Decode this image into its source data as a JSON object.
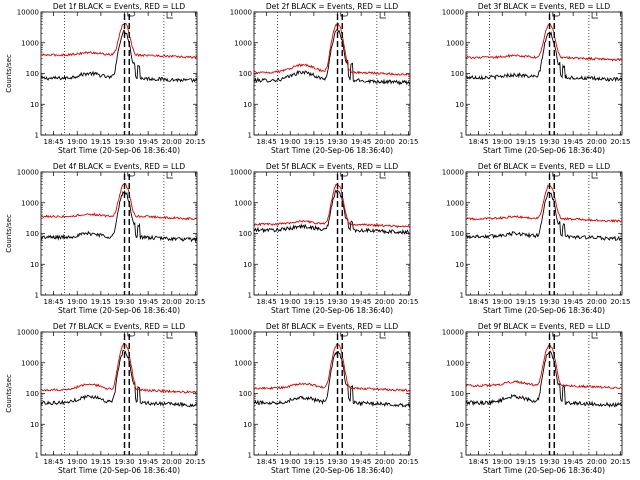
{
  "figure": {
    "xlabel": "Start Time (20-Sep-06 18:36:40)",
    "ylabel": "Counts/sec",
    "x_tick_labels": [
      "18:45",
      "19:00",
      "19:15",
      "19:30",
      "19:45",
      "20:00",
      "20:15"
    ],
    "y_tick_labels": [
      "1",
      "10",
      "100",
      "1000",
      "10000"
    ],
    "colors": {
      "events": "#000000",
      "lld": "#dd0000",
      "axis": "#000000",
      "background": "#ffffff"
    }
  },
  "chart_data": [
    {
      "type": "line",
      "title": "Det 1f BLACK = Events, RED = LLD",
      "xlabel": "Start Time (20-Sep-06 18:36:40)",
      "ylabel": "Counts/sec",
      "x_tick_labels": [
        "18:45",
        "19:00",
        "19:15",
        "19:30",
        "19:45",
        "20:00",
        "20:15"
      ],
      "ylog": true,
      "ylim": [
        1,
        10000
      ],
      "markers": {
        "dotted_vertical": [
          "18:52",
          "19:55"
        ],
        "dashed_vertical": [
          "19:30",
          "19:33"
        ]
      },
      "series": [
        {
          "name": "Events",
          "color": "#000000",
          "baseline": 70,
          "bump": 100,
          "peak": 2200,
          "spikes": [
            130,
            120
          ]
        },
        {
          "name": "LLD",
          "color": "#dd0000",
          "baseline": 400,
          "bump": 480,
          "peak": 3800,
          "spikes": []
        }
      ]
    },
    {
      "type": "line",
      "title": "Det 2f BLACK = Events, RED = LLD",
      "xlabel": "Start Time (20-Sep-06 18:36:40)",
      "ylabel": "Counts/sec",
      "x_tick_labels": [
        "18:45",
        "19:00",
        "19:15",
        "19:30",
        "19:45",
        "20:00",
        "20:15"
      ],
      "ylog": true,
      "ylim": [
        1,
        10000
      ],
      "markers": {
        "dotted_vertical": [
          "18:52",
          "19:55"
        ],
        "dashed_vertical": [
          "19:30",
          "19:33"
        ]
      },
      "series": [
        {
          "name": "Events",
          "color": "#000000",
          "baseline": 60,
          "bump": 110,
          "peak": 2500,
          "spikes": [
            150,
            130
          ]
        },
        {
          "name": "LLD",
          "color": "#dd0000",
          "baseline": 110,
          "bump": 190,
          "peak": 4000,
          "spikes": []
        }
      ]
    },
    {
      "type": "line",
      "title": "Det 3f BLACK = Events, RED = LLD",
      "xlabel": "Start Time (20-Sep-06 18:36:40)",
      "ylabel": "Counts/sec",
      "x_tick_labels": [
        "18:45",
        "19:00",
        "19:15",
        "19:30",
        "19:45",
        "20:00",
        "20:15"
      ],
      "ylog": true,
      "ylim": [
        1,
        10000
      ],
      "markers": {
        "dotted_vertical": [
          "18:52",
          "19:55"
        ],
        "dashed_vertical": [
          "19:30",
          "19:33"
        ]
      },
      "series": [
        {
          "name": "Events",
          "color": "#000000",
          "baseline": 75,
          "bump": 90,
          "peak": 2000,
          "spikes": [
            140,
            120
          ]
        },
        {
          "name": "LLD",
          "color": "#dd0000",
          "baseline": 330,
          "bump": 380,
          "peak": 3500,
          "spikes": []
        }
      ]
    },
    {
      "type": "line",
      "title": "Det 4f BLACK = Events, RED = LLD",
      "xlabel": "Start Time (20-Sep-06 18:36:40)",
      "ylabel": "Counts/sec",
      "x_tick_labels": [
        "18:45",
        "19:00",
        "19:15",
        "19:30",
        "19:45",
        "20:00",
        "20:15"
      ],
      "ylog": true,
      "ylim": [
        1,
        10000
      ],
      "markers": {
        "dotted_vertical": [
          "18:52",
          "19:55"
        ],
        "dashed_vertical": [
          "19:30",
          "19:33"
        ]
      },
      "series": [
        {
          "name": "Events",
          "color": "#000000",
          "baseline": 75,
          "bump": 100,
          "peak": 2200,
          "spikes": [
            140,
            120
          ]
        },
        {
          "name": "LLD",
          "color": "#dd0000",
          "baseline": 360,
          "bump": 420,
          "peak": 3600,
          "spikes": []
        }
      ]
    },
    {
      "type": "line",
      "title": "Det 5f BLACK = Events, RED = LLD",
      "xlabel": "Start Time (20-Sep-06 18:36:40)",
      "ylabel": "Counts/sec",
      "x_tick_labels": [
        "18:45",
        "19:00",
        "19:15",
        "19:30",
        "19:45",
        "20:00",
        "20:15"
      ],
      "ylog": true,
      "ylim": [
        1,
        10000
      ],
      "markers": {
        "dotted_vertical": [
          "18:52",
          "19:55"
        ],
        "dashed_vertical": [
          "19:30",
          "19:33"
        ]
      },
      "series": [
        {
          "name": "Events",
          "color": "#000000",
          "baseline": 130,
          "bump": 170,
          "peak": 2400,
          "spikes": [
            200,
            160
          ]
        },
        {
          "name": "LLD",
          "color": "#dd0000",
          "baseline": 200,
          "bump": 250,
          "peak": 3800,
          "spikes": []
        }
      ]
    },
    {
      "type": "line",
      "title": "Det 6f BLACK = Events, RED = LLD",
      "xlabel": "Start Time (20-Sep-06 18:36:40)",
      "ylabel": "Counts/sec",
      "x_tick_labels": [
        "18:45",
        "19:00",
        "19:15",
        "19:30",
        "19:45",
        "20:00",
        "20:15"
      ],
      "ylog": true,
      "ylim": [
        1,
        10000
      ],
      "markers": {
        "dotted_vertical": [
          "18:52",
          "19:55"
        ],
        "dashed_vertical": [
          "19:30",
          "19:33"
        ]
      },
      "series": [
        {
          "name": "Events",
          "color": "#000000",
          "baseline": 80,
          "bump": 100,
          "peak": 2000,
          "spikes": [
            140,
            120
          ]
        },
        {
          "name": "LLD",
          "color": "#dd0000",
          "baseline": 300,
          "bump": 350,
          "peak": 3400,
          "spikes": []
        }
      ]
    },
    {
      "type": "line",
      "title": "Det 7f BLACK = Events, RED = LLD",
      "xlabel": "Start Time (20-Sep-06 18:36:40)",
      "ylabel": "Counts/sec",
      "x_tick_labels": [
        "18:45",
        "19:00",
        "19:15",
        "19:30",
        "19:45",
        "20:00",
        "20:15"
      ],
      "ylog": true,
      "ylim": [
        1,
        10000
      ],
      "markers": {
        "dotted_vertical": [
          "18:52",
          "19:55"
        ],
        "dashed_vertical": [
          "19:30",
          "19:33"
        ]
      },
      "series": [
        {
          "name": "Events",
          "color": "#000000",
          "baseline": 50,
          "bump": 80,
          "peak": 2400,
          "spikes": [
            130,
            110
          ]
        },
        {
          "name": "LLD",
          "color": "#dd0000",
          "baseline": 130,
          "bump": 200,
          "peak": 4000,
          "spikes": []
        }
      ]
    },
    {
      "type": "line",
      "title": "Det 8f BLACK = Events, RED = LLD",
      "xlabel": "Start Time (20-Sep-06 18:36:40)",
      "ylabel": "Counts/sec",
      "x_tick_labels": [
        "18:45",
        "19:00",
        "19:15",
        "19:30",
        "19:45",
        "20:00",
        "20:15"
      ],
      "ylog": true,
      "ylim": [
        1,
        10000
      ],
      "markers": {
        "dotted_vertical": [
          "18:52",
          "19:55"
        ],
        "dashed_vertical": [
          "19:30",
          "19:33"
        ]
      },
      "series": [
        {
          "name": "Events",
          "color": "#000000",
          "baseline": 50,
          "bump": 75,
          "peak": 2300,
          "spikes": [
            120,
            110
          ]
        },
        {
          "name": "LLD",
          "color": "#dd0000",
          "baseline": 150,
          "bump": 210,
          "peak": 3800,
          "spikes": []
        }
      ]
    },
    {
      "type": "line",
      "title": "Det 9f BLACK = Events, RED = LLD",
      "xlabel": "Start Time (20-Sep-06 18:36:40)",
      "ylabel": "Counts/sec",
      "x_tick_labels": [
        "18:45",
        "19:00",
        "19:15",
        "19:30",
        "19:45",
        "20:00",
        "20:15"
      ],
      "ylog": true,
      "ylim": [
        1,
        10000
      ],
      "markers": {
        "dotted_vertical": [
          "18:52",
          "19:55"
        ],
        "dashed_vertical": [
          "19:30",
          "19:33"
        ]
      },
      "series": [
        {
          "name": "Events",
          "color": "#000000",
          "baseline": 50,
          "bump": 80,
          "peak": 2300,
          "spikes": [
            130,
            110
          ]
        },
        {
          "name": "LLD",
          "color": "#dd0000",
          "baseline": 180,
          "bump": 240,
          "peak": 3600,
          "spikes": []
        }
      ]
    }
  ]
}
